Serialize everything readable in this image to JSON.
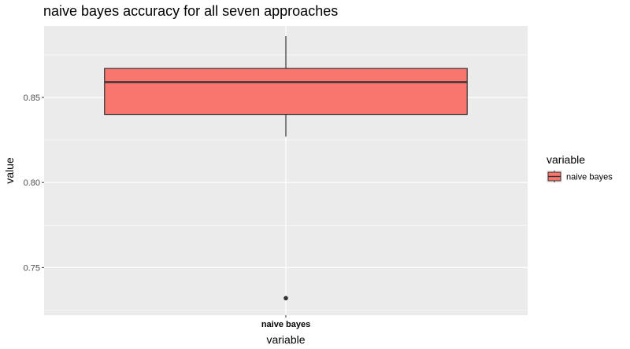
{
  "chart_data": {
    "type": "boxplot",
    "title": "naive bayes accuracy for all seven approaches",
    "xlabel": "variable",
    "ylabel": "value",
    "categories": [
      "naive bayes"
    ],
    "ylim": [
      0.722,
      0.892
    ],
    "yticks": [
      0.75,
      0.8,
      0.85
    ],
    "ytick_labels": [
      "0.75",
      "0.80",
      "0.85"
    ],
    "grid": true,
    "series": [
      {
        "name": "naive bayes",
        "color": "#F8766D",
        "q1": 0.84,
        "median": 0.859,
        "q3": 0.867,
        "whisker_low": 0.827,
        "whisker_high": 0.886,
        "outliers": [
          0.732
        ]
      }
    ],
    "legend": {
      "title": "variable",
      "position": "right",
      "entries": [
        "naive bayes"
      ]
    }
  }
}
